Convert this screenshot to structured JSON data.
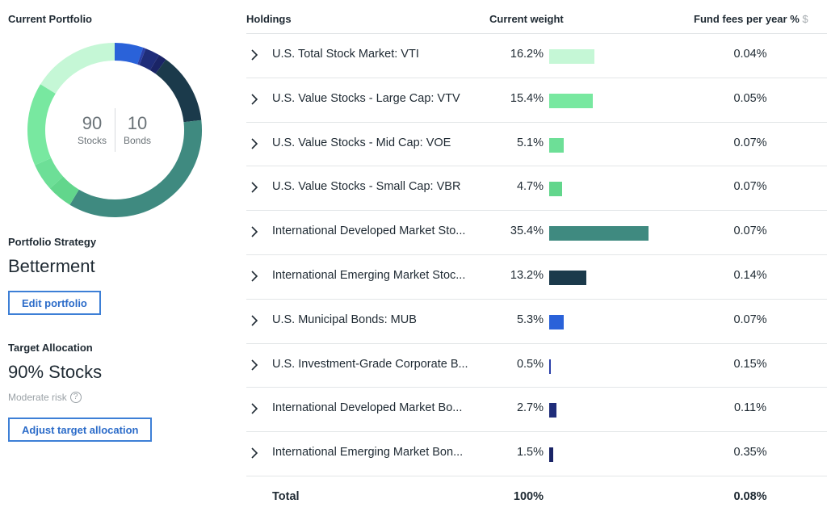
{
  "left": {
    "current_portfolio_title": "Current Portfolio",
    "donut": {
      "stocks_value": "90",
      "stocks_label": "Stocks",
      "bonds_value": "10",
      "bonds_label": "Bonds"
    },
    "strategy_title": "Portfolio Strategy",
    "strategy_value": "Betterment",
    "edit_button": "Edit portfolio",
    "target_title": "Target Allocation",
    "target_value": "90% Stocks",
    "risk_label": "Moderate risk",
    "help_icon": "?",
    "adjust_button": "Adjust target allocation"
  },
  "table": {
    "headers": {
      "holdings": "Holdings",
      "weight": "Current weight",
      "fees": "Fund fees per year %",
      "fees_symbol": "$"
    },
    "rows": [
      {
        "name": "U.S. Total Stock Market: VTI",
        "weight": "16.2%",
        "weight_value": 16.2,
        "color": "#c5f7d6",
        "fee": "0.04%"
      },
      {
        "name": "U.S. Value Stocks - Large Cap: VTV",
        "weight": "15.4%",
        "weight_value": 15.4,
        "color": "#78e8a0",
        "fee": "0.05%"
      },
      {
        "name": "U.S. Value Stocks - Mid Cap: VOE",
        "weight": "5.1%",
        "weight_value": 5.1,
        "color": "#6ddf97",
        "fee": "0.07%"
      },
      {
        "name": "U.S. Value Stocks - Small Cap: VBR",
        "weight": "4.7%",
        "weight_value": 4.7,
        "color": "#62d68c",
        "fee": "0.07%"
      },
      {
        "name": "International Developed Market Sto...",
        "weight": "35.4%",
        "weight_value": 35.4,
        "color": "#3f8a80",
        "fee": "0.07%"
      },
      {
        "name": "International Emerging Market Stoc...",
        "weight": "13.2%",
        "weight_value": 13.2,
        "color": "#1b3a4b",
        "fee": "0.14%"
      },
      {
        "name": "U.S. Municipal Bonds: MUB",
        "weight": "5.3%",
        "weight_value": 5.3,
        "color": "#2a62d9",
        "fee": "0.07%"
      },
      {
        "name": "U.S. Investment-Grade Corporate B...",
        "weight": "0.5%",
        "weight_value": 0.5,
        "color": "#2a3fa8",
        "fee": "0.15%"
      },
      {
        "name": "International Developed Market Bo...",
        "weight": "2.7%",
        "weight_value": 2.7,
        "color": "#1f2d7a",
        "fee": "0.11%"
      },
      {
        "name": "International Emerging Market Bon...",
        "weight": "1.5%",
        "weight_value": 1.5,
        "color": "#1a2466",
        "fee": "0.35%"
      }
    ],
    "total": {
      "label": "Total",
      "weight": "100%",
      "fee": "0.08%"
    }
  },
  "icons": {
    "row_expand": "chevron-right-icon",
    "help": "question-circle-icon"
  }
}
